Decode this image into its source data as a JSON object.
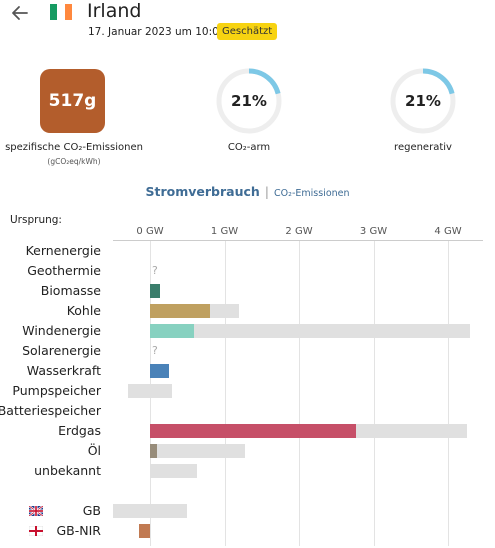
{
  "header": {
    "country": "Irland",
    "date": "17. Januar 2023 um 10:00",
    "badge": "Geschätzt",
    "flag_colors": [
      "#169b62",
      "#ffffff",
      "#ff883e"
    ],
    "back_icon": "back-arrow-icon"
  },
  "summary": {
    "co2_value": "517g",
    "co2_label": "spezifische CO₂-Emissionen",
    "co2_unit": "(gCO₂eq/kWh)",
    "co2_color": "#b35d2c",
    "low_carbon": {
      "value": "21%",
      "fraction": 0.21,
      "label": "CO₂-arm"
    },
    "renewable": {
      "value": "21%",
      "fraction": 0.21,
      "label": "regenerativ"
    },
    "ring_color": "#7dc8e6",
    "ring_track_color": "#eeeeee"
  },
  "chart_title": {
    "main": "Stromverbrauch",
    "separator": "|",
    "alternative": "CO₂-Emissionen"
  },
  "origin_label": "Ursprung:",
  "chart_data": {
    "type": "bar",
    "orientation": "horizontal",
    "unit": "GW",
    "xlim": [
      -0.5,
      4.3
    ],
    "ticks": [
      {
        "value": 0,
        "label": "0 GW"
      },
      {
        "value": 1,
        "label": "1 GW"
      },
      {
        "value": 2,
        "label": "2 GW"
      },
      {
        "value": 3,
        "label": "3 GW"
      },
      {
        "value": 4,
        "label": "4 GW"
      }
    ],
    "categories": [
      {
        "name": "Kernenergie",
        "value": null,
        "capacity": null,
        "unknown": false,
        "color": ""
      },
      {
        "name": "Geothermie",
        "value": null,
        "capacity": null,
        "unknown": true,
        "color": ""
      },
      {
        "name": "Biomasse",
        "value": 0.14,
        "capacity": 0.14,
        "unknown": false,
        "color": "#3a7d6b"
      },
      {
        "name": "Kohle",
        "value": 0.81,
        "capacity": 1.2,
        "unknown": false,
        "color": "#bfa060"
      },
      {
        "name": "Windenergie",
        "value": 0.59,
        "capacity": 4.3,
        "unknown": false,
        "color": "#87d1c0"
      },
      {
        "name": "Solarenergie",
        "value": null,
        "capacity": null,
        "unknown": true,
        "color": ""
      },
      {
        "name": "Wasserkraft",
        "value": 0.25,
        "capacity": 0.25,
        "unknown": false,
        "color": "#4a82b8"
      },
      {
        "name": "Pumpspeicher",
        "value": 0,
        "capacity": 0.29,
        "capacity_min": -0.29,
        "unknown": false,
        "color": ""
      },
      {
        "name": "Batteriespeicher",
        "value": null,
        "capacity": null,
        "unknown": false,
        "color": ""
      },
      {
        "name": "Erdgas",
        "value": 2.76,
        "capacity": 4.25,
        "unknown": false,
        "color": "#c64f68"
      },
      {
        "name": "Öl",
        "value": 0.09,
        "capacity": 1.27,
        "unknown": false,
        "color": "#978c7a"
      },
      {
        "name": "unbekannt",
        "value": 0,
        "capacity": 0.63,
        "unknown": false,
        "color": ""
      }
    ],
    "exchanges": [
      {
        "name": "GB",
        "value": 0,
        "range": [
          -0.5,
          0.5
        ],
        "color": "",
        "flag": "uk-flag-icon"
      },
      {
        "name": "GB-NIR",
        "value": -0.15,
        "range": [
          -0.15,
          0
        ],
        "color": "#c17a52",
        "flag": "northern-ireland-flag-icon"
      }
    ]
  }
}
